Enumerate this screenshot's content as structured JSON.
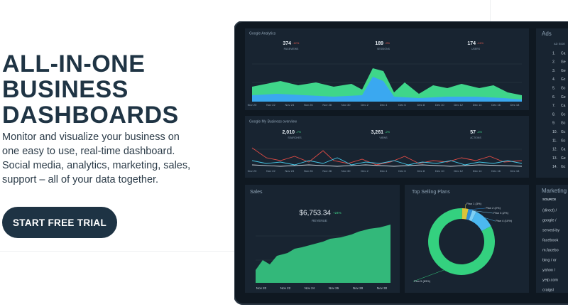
{
  "hero": {
    "title_lines": [
      "ALL-IN-ONE",
      "BUSINESS",
      "DASHBOARDS"
    ],
    "description": "Monitor and visualize your business on one easy to use, real-time dashboard. Social media, analytics, marketing, sales, support – all of your data together.",
    "cta": "START FREE TRIAL"
  },
  "dashboard": {
    "google_analytics": {
      "title": "Google Analytics",
      "metrics": [
        {
          "value": "374",
          "change": "-12%",
          "label": "PAGEVIEWS"
        },
        {
          "value": "189",
          "change": "-9%",
          "label": "SESSIONS"
        },
        {
          "value": "174",
          "change": "-11%",
          "label": "USERS"
        }
      ],
      "dates": [
        "Nov 20",
        "Nov 22",
        "Nov 24",
        "Nov 26",
        "Nov 28",
        "Nov 30",
        "Dec 2",
        "Dec 4",
        "Dec 6",
        "Dec 8",
        "Dec 10",
        "Dec 12",
        "Dec 14",
        "Dec 16",
        "Dec 18"
      ]
    },
    "google_my_business": {
      "title": "Google My Business overview",
      "metrics": [
        {
          "value": "2,010",
          "change": "-7%",
          "label": "SEARCHES"
        },
        {
          "value": "3,261",
          "change": "-2%",
          "label": "VIEWS"
        },
        {
          "value": "57",
          "change": "-4%",
          "label": "ACTIONS"
        }
      ],
      "dates": [
        "Nov 20",
        "Nov 22",
        "Nov 24",
        "Nov 26",
        "Nov 28",
        "Nov 30",
        "Dec 2",
        "Dec 4",
        "Dec 6",
        "Dec 8",
        "Dec 10",
        "Dec 12",
        "Dec 14",
        "Dec 16",
        "Dec 18"
      ]
    },
    "ads": {
      "title": "Ads",
      "column": "AD SIDE",
      "rows": [
        "1.",
        "2.",
        "3.",
        "4.",
        "5.",
        "6.",
        "7.",
        "8.",
        "9.",
        "10.",
        "11.",
        "12.",
        "13.",
        "14."
      ],
      "names": [
        "Ca",
        "Ge",
        "Ge",
        "Gc",
        "Gc",
        "Ge",
        "Ca",
        "Gc",
        "Gc",
        "Gc",
        "Gc",
        "Ca",
        "Ge",
        "Gc"
      ]
    },
    "sales": {
      "title": "Sales",
      "value": "$6,753.34",
      "change": "+24%",
      "label": "REVENUE",
      "dates": [
        "Nov 20",
        "Nov 22",
        "Nov 24",
        "Nov 26",
        "Nov 28",
        "Nov 30"
      ]
    },
    "top_selling": {
      "title": "Top Selling  Plans",
      "plans": [
        {
          "label": "Plan 1 (3%)",
          "value": 3,
          "color": "#d9c43a"
        },
        {
          "label": "Plan 2 (2%)",
          "value": 2,
          "color": "#2f8fd8"
        },
        {
          "label": "Plan 3 (2%)",
          "value": 2,
          "color": "#7fd0f5"
        },
        {
          "label": "Plan 4 (10%)",
          "value": 10,
          "color": "#4cb8f0"
        },
        {
          "label": "Plan 5 (83%)",
          "value": 83,
          "color": "#34d17f"
        }
      ]
    },
    "marketing": {
      "title": "Marketing",
      "column": "SOURCE",
      "rows": [
        "(direct) /",
        "google /",
        "served-by",
        "facebook",
        "m.facebo",
        "bing / or",
        "yahoo /",
        "yelp.com",
        "craigsl"
      ]
    }
  }
}
